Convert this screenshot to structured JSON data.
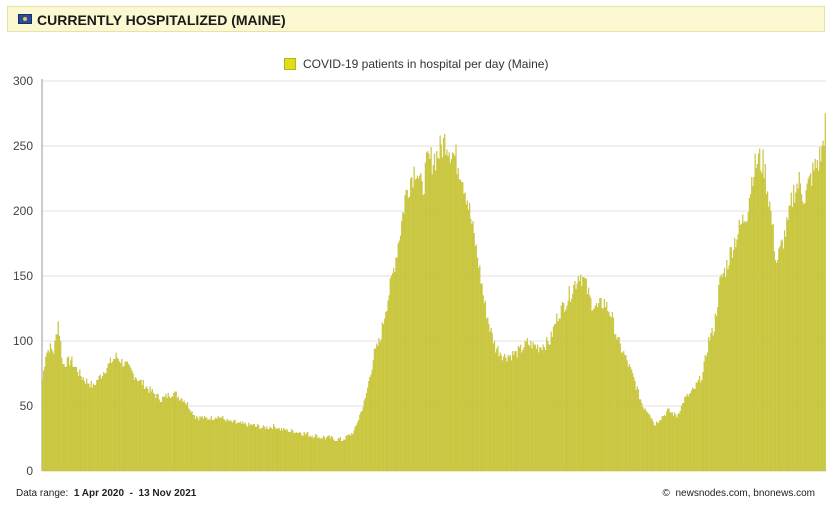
{
  "header": {
    "title": "CURRENTLY HOSPITALIZED (MAINE)",
    "flag_icon": "maine-flag-icon"
  },
  "footer": {
    "range_label": "Data range:",
    "range_start": "1 Apr 2020",
    "range_sep": "-",
    "range_end": "13 Nov 2021",
    "credit_symbol": "©",
    "credit": "newsnodes.com, bnonews.com"
  },
  "chart_data": {
    "type": "bar",
    "series": [
      {
        "name": "COVID-19 patients in hospital per day (Maine)",
        "color": "#cfcc3a"
      }
    ],
    "ylim": [
      0,
      300
    ],
    "yticks": [
      0,
      50,
      100,
      150,
      200,
      250,
      300
    ],
    "grid": true,
    "legend": "top-center",
    "x_start": "1 Apr 2020",
    "x_end": "13 Nov 2021",
    "keypoints": [
      [
        0,
        70
      ],
      [
        3,
        90
      ],
      [
        6,
        95
      ],
      [
        10,
        92
      ],
      [
        14,
        115
      ],
      [
        18,
        82
      ],
      [
        25,
        85
      ],
      [
        35,
        72
      ],
      [
        45,
        65
      ],
      [
        55,
        78
      ],
      [
        65,
        88
      ],
      [
        75,
        80
      ],
      [
        85,
        70
      ],
      [
        95,
        62
      ],
      [
        105,
        55
      ],
      [
        115,
        60
      ],
      [
        125,
        55
      ],
      [
        135,
        42
      ],
      [
        145,
        40
      ],
      [
        155,
        42
      ],
      [
        165,
        38
      ],
      [
        175,
        36
      ],
      [
        185,
        35
      ],
      [
        195,
        33
      ],
      [
        205,
        34
      ],
      [
        215,
        31
      ],
      [
        225,
        30
      ],
      [
        235,
        28
      ],
      [
        245,
        26
      ],
      [
        255,
        25
      ],
      [
        265,
        24
      ],
      [
        275,
        30
      ],
      [
        285,
        55
      ],
      [
        293,
        90
      ],
      [
        298,
        100
      ],
      [
        303,
        125
      ],
      [
        308,
        145
      ],
      [
        315,
        180
      ],
      [
        320,
        210
      ],
      [
        325,
        225
      ],
      [
        330,
        235
      ],
      [
        335,
        215
      ],
      [
        340,
        238
      ],
      [
        345,
        240
      ],
      [
        350,
        245
      ],
      [
        353,
        250
      ],
      [
        356,
        255
      ],
      [
        360,
        248
      ],
      [
        365,
        240
      ],
      [
        370,
        230
      ],
      [
        375,
        210
      ],
      [
        380,
        185
      ],
      [
        385,
        160
      ],
      [
        390,
        130
      ],
      [
        395,
        110
      ],
      [
        400,
        95
      ],
      [
        408,
        88
      ],
      [
        418,
        90
      ],
      [
        428,
        98
      ],
      [
        438,
        95
      ],
      [
        448,
        100
      ],
      [
        455,
        120
      ],
      [
        462,
        130
      ],
      [
        468,
        140
      ],
      [
        474,
        152
      ],
      [
        479,
        145
      ],
      [
        484,
        130
      ],
      [
        490,
        125
      ],
      [
        496,
        130
      ],
      [
        502,
        120
      ],
      [
        508,
        100
      ],
      [
        513,
        90
      ],
      [
        518,
        80
      ],
      [
        523,
        68
      ],
      [
        530,
        50
      ],
      [
        536,
        45
      ],
      [
        540,
        36
      ],
      [
        545,
        40
      ],
      [
        552,
        46
      ],
      [
        560,
        42
      ],
      [
        567,
        55
      ],
      [
        575,
        62
      ],
      [
        583,
        75
      ],
      [
        588,
        100
      ],
      [
        593,
        110
      ],
      [
        598,
        145
      ],
      [
        603,
        155
      ],
      [
        610,
        175
      ],
      [
        617,
        190
      ],
      [
        622,
        200
      ],
      [
        627,
        230
      ],
      [
        632,
        240
      ],
      [
        637,
        235
      ],
      [
        642,
        205
      ],
      [
        648,
        160
      ],
      [
        653,
        175
      ],
      [
        658,
        190
      ],
      [
        663,
        215
      ],
      [
        668,
        222
      ],
      [
        673,
        210
      ],
      [
        678,
        225
      ],
      [
        683,
        235
      ],
      [
        688,
        245
      ],
      [
        691,
        268
      ]
    ]
  }
}
